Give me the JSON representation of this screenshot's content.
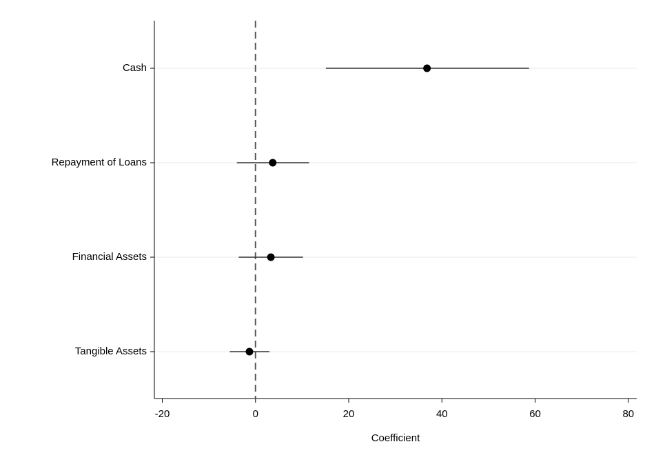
{
  "chart_data": {
    "type": "coefplot",
    "xlabel": "Coefficient",
    "categories": [
      "Cash",
      "Repayment of Loans",
      "Financial Assets",
      "Tangible Assets"
    ],
    "series": [
      {
        "color": "#000000",
        "values": [
          36.8,
          3.7,
          3.3,
          -1.3
        ],
        "lower": [
          15.1,
          -4.0,
          -3.6,
          -5.5
        ],
        "upper": [
          58.7,
          11.5,
          10.2,
          3.0
        ]
      }
    ],
    "xlim": [
      -21.7,
      81.8
    ],
    "xticks": [
      -20,
      0,
      20,
      40,
      60,
      80
    ],
    "reference_line": 0,
    "grid": true
  }
}
